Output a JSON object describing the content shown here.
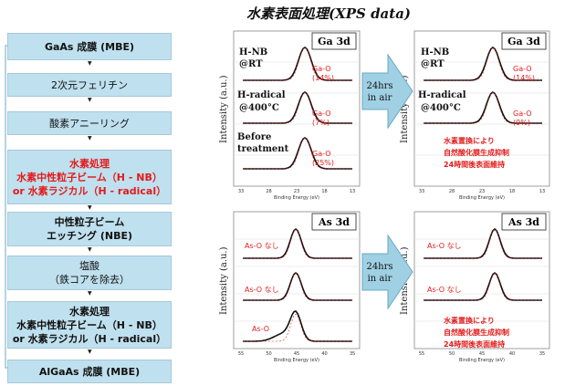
{
  "title": "水素表面処理(XPS data)",
  "process": {
    "steps": [
      {
        "lines": [
          "GaAs 成膜 (MBE)"
        ],
        "style": "bold"
      },
      {
        "lines": [
          "2次元フェリチン"
        ],
        "style": "normal"
      },
      {
        "lines": [
          "酸素アニーリング"
        ],
        "style": "normal"
      },
      {
        "lines": [
          "水素処理",
          "水素中性粒子ビーム（H - NB）",
          "or 水素ラジカル（H - radical）"
        ],
        "style": "red"
      },
      {
        "lines": [
          "中性粒子ビーム",
          "エッチング (NBE)"
        ],
        "style": "bold"
      },
      {
        "lines": [
          "塩酸",
          "（鉄コアを除去）"
        ],
        "style": "normal"
      },
      {
        "lines": [
          "水素処理",
          "水素中性粒子ビーム（H - NB）",
          "or 水素ラジカル（H - radical）"
        ],
        "style": "bold"
      },
      {
        "lines": [
          "AlGaAs 成膜 (MBE)"
        ],
        "style": "bold"
      }
    ]
  },
  "panels": {
    "ga_before": {
      "title": "Ga 3d",
      "labels": [
        "H-NB",
        "@RT",
        "H-radical",
        "@400°C",
        "Before",
        "treatment"
      ],
      "peaks": [
        "Ga-O",
        "(14%)",
        "Ga-O",
        "(7%)",
        "Ga-O",
        "(25%)"
      ],
      "xticks": [
        "33",
        "28",
        "23",
        "18",
        "13"
      ],
      "xlabel": "Binding Energy (eV)",
      "ylabel": "Intensity (a.u.)"
    },
    "ga_after": {
      "title": "Ga 3d",
      "labels": [
        "H-NB",
        "@RT",
        "H-radical",
        "@400°C"
      ],
      "peaks": [
        "Ga-O",
        "(14%)",
        "Ga-O",
        "(9%)"
      ],
      "note": [
        "水素置換により",
        "自然酸化膜生成抑制",
        "24時間後表面維持"
      ],
      "xticks": [
        "33",
        "28",
        "23",
        "18",
        "13"
      ],
      "xlabel": "Binding Energy (eV)",
      "ylabel": "Intensity (a.u.)"
    },
    "as_before": {
      "title": "As 3d",
      "peaks": [
        "As-O なし",
        "As-O なし",
        "As-O"
      ],
      "xticks": [
        "55",
        "50",
        "45",
        "40",
        "35"
      ],
      "xlabel": "Binding Energy (eV)",
      "ylabel": "Intensity (a.u.)"
    },
    "as_after": {
      "title": "As 3d",
      "peaks": [
        "As-O なし",
        "As-O なし"
      ],
      "note": [
        "水素置換により",
        "自然酸化膜生成抑制",
        "24時間後表面維持"
      ],
      "xticks": [
        "55",
        "50",
        "45",
        "40",
        "35"
      ],
      "xlabel": "Binding Energy (eV)",
      "ylabel": "Intensity (a.u.)"
    }
  },
  "transition": {
    "line1": "24hrs",
    "line2": "in air"
  },
  "colors": {
    "box_fill": "#bfe0ee",
    "arrow_fill": "#9fd0e4",
    "highlight": "#e31b1b"
  }
}
